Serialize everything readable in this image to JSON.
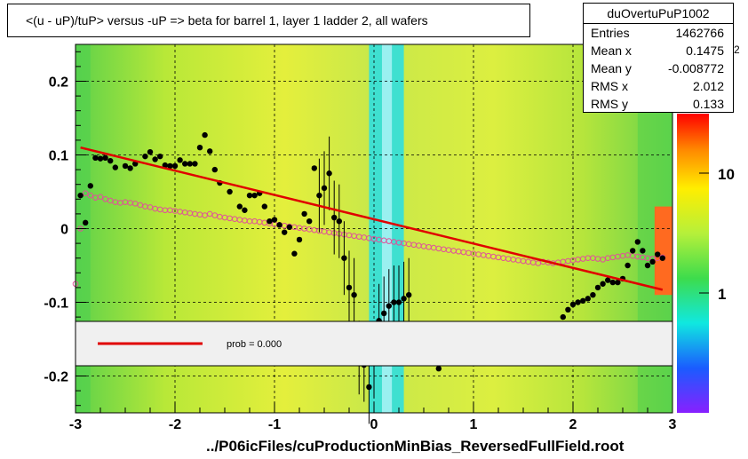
{
  "chart_data": {
    "type": "scatter",
    "title": "<(u - uP)/tuP>  versus  -uP => beta for barrel 1, layer 1 ladder 2, all wafers",
    "xlabel": "",
    "ylabel": "",
    "xlim": [
      -3,
      3
    ],
    "ylim": [
      -0.25,
      0.25
    ],
    "x_ticks": [
      "-3",
      "-2",
      "-1",
      "0",
      "1",
      "2",
      "3"
    ],
    "y_ticks": [
      "-0.2",
      "-0.1",
      "0",
      "0.1",
      "0.2"
    ],
    "grid": true,
    "colorbar_ticks": [
      "10",
      "1"
    ],
    "colorbar_exponent_label": "2",
    "histogram_name": "duOvertuPuP1002",
    "stats": [
      {
        "key": "Entries",
        "value": "1462766"
      },
      {
        "key": "Mean x",
        "value": "0.1475"
      },
      {
        "key": "Mean y",
        "value": "-0.008772"
      },
      {
        "key": "RMS x",
        "value": "2.012"
      },
      {
        "key": "RMS y",
        "value": "0.133"
      }
    ],
    "fit_legend": "prob = 0.000",
    "fit_line": {
      "x": [
        -2.95,
        2.9
      ],
      "y": [
        0.11,
        -0.083
      ]
    },
    "series": [
      {
        "marker": "filled-circle",
        "x": [
          -2.95,
          -2.9,
          -2.85,
          -2.8,
          -2.75,
          -2.7,
          -2.65,
          -2.6,
          -2.5,
          -2.45,
          -2.4,
          -2.3,
          -2.25,
          -2.2,
          -2.15,
          -2.1,
          -2.05,
          -2.0,
          -1.95,
          -1.9,
          -1.85,
          -1.8,
          -1.75,
          -1.7,
          -1.65,
          -1.6,
          -1.55,
          -1.45,
          -1.35,
          -1.3,
          -1.25,
          -1.2,
          -1.15,
          -1.1,
          -1.05,
          -1.0,
          -0.95,
          -0.9,
          -0.85,
          -0.8,
          -0.75,
          -0.7,
          -0.65,
          -0.6,
          -0.55,
          -0.5,
          -0.45,
          -0.4,
          -0.35,
          -0.3,
          -0.25,
          -0.2,
          -0.15,
          -0.1,
          -0.05,
          0.0,
          0.05,
          0.1,
          0.15,
          0.2,
          0.25,
          0.3,
          0.35,
          0.65,
          1.9,
          1.95,
          2.0,
          2.05,
          2.1,
          2.15,
          2.2,
          2.25,
          2.3,
          2.35,
          2.4,
          2.45,
          2.5,
          2.55,
          2.6,
          2.65,
          2.7,
          2.75,
          2.8,
          2.85,
          2.9
        ],
        "y": [
          0.045,
          0.008,
          0.058,
          0.096,
          0.095,
          0.096,
          0.092,
          0.083,
          0.085,
          0.082,
          0.088,
          0.098,
          0.104,
          0.094,
          0.098,
          0.086,
          0.085,
          0.085,
          0.093,
          0.088,
          0.088,
          0.088,
          0.11,
          0.127,
          0.105,
          0.08,
          0.062,
          0.05,
          0.03,
          0.025,
          0.045,
          0.045,
          0.048,
          0.03,
          0.01,
          0.012,
          0.005,
          -0.005,
          0.002,
          -0.034,
          -0.015,
          0.02,
          0.01,
          0.082,
          0.045,
          0.055,
          0.075,
          0.015,
          0.01,
          -0.04,
          -0.08,
          -0.09,
          -0.175,
          -0.185,
          -0.215,
          -0.18,
          -0.125,
          -0.115,
          -0.105,
          -0.1,
          -0.1,
          -0.095,
          -0.09,
          -0.19,
          -0.12,
          -0.11,
          -0.103,
          -0.1,
          -0.098,
          -0.095,
          -0.09,
          -0.08,
          -0.075,
          -0.07,
          -0.073,
          -0.073,
          -0.068,
          -0.05,
          -0.03,
          -0.018,
          -0.03,
          -0.05,
          -0.045,
          -0.035,
          -0.04
        ]
      },
      {
        "marker": "open-circle",
        "x": [
          -3.0,
          -2.95,
          -2.9,
          -2.85,
          -2.8,
          -2.75,
          -2.7,
          -2.65,
          -2.6,
          -2.55,
          -2.5,
          -2.45,
          -2.4,
          -2.35,
          -2.3,
          -2.25,
          -2.2,
          -2.15,
          -2.1,
          -2.05,
          -2.0,
          -1.95,
          -1.9,
          -1.85,
          -1.8,
          -1.75,
          -1.7,
          -1.65,
          -1.6,
          -1.55,
          -1.5,
          -1.45,
          -1.4,
          -1.35,
          -1.3,
          -1.25,
          -1.2,
          -1.15,
          -1.1,
          -1.05,
          -1.0,
          -0.95,
          -0.9,
          -0.85,
          -0.8,
          -0.75,
          -0.7,
          -0.65,
          -0.6,
          -0.55,
          -0.5,
          -0.45,
          -0.4,
          -0.35,
          -0.3,
          -0.25,
          -0.2,
          -0.15,
          -0.1,
          -0.05,
          0.0,
          0.05,
          0.1,
          0.15,
          0.2,
          0.25,
          0.3,
          0.35,
          0.4,
          0.45,
          0.5,
          0.55,
          0.6,
          0.65,
          0.7,
          0.75,
          0.8,
          0.85,
          0.9,
          0.95,
          1.0,
          1.05,
          1.1,
          1.15,
          1.2,
          1.25,
          1.3,
          1.35,
          1.4,
          1.45,
          1.5,
          1.55,
          1.6,
          1.65,
          1.7,
          1.75,
          1.8,
          1.85,
          1.9,
          1.95,
          2.0,
          2.05,
          2.1,
          2.15,
          2.2,
          2.25,
          2.3,
          2.35,
          2.4,
          2.45,
          2.5,
          2.55,
          2.6,
          2.65,
          2.7,
          2.75,
          2.8,
          2.85,
          2.9
        ],
        "y": [
          -0.075,
          0.0,
          0.048,
          0.045,
          0.042,
          0.043,
          0.04,
          0.038,
          0.036,
          0.035,
          0.036,
          0.035,
          0.034,
          0.032,
          0.03,
          0.029,
          0.027,
          0.026,
          0.025,
          0.025,
          0.024,
          0.023,
          0.022,
          0.021,
          0.02,
          0.019,
          0.018,
          0.02,
          0.018,
          0.016,
          0.015,
          0.014,
          0.013,
          0.012,
          0.011,
          0.01,
          0.01,
          0.009,
          0.008,
          0.007,
          0.006,
          0.005,
          0.004,
          0.003,
          0.002,
          0.001,
          0.0,
          -0.001,
          -0.002,
          -0.003,
          -0.004,
          -0.005,
          -0.006,
          -0.007,
          -0.008,
          -0.009,
          -0.01,
          -0.011,
          -0.012,
          -0.013,
          -0.014,
          -0.015,
          -0.016,
          -0.017,
          -0.018,
          -0.019,
          -0.02,
          -0.021,
          -0.022,
          -0.023,
          -0.024,
          -0.025,
          -0.026,
          -0.027,
          -0.028,
          -0.029,
          -0.03,
          -0.031,
          -0.032,
          -0.033,
          -0.034,
          -0.035,
          -0.036,
          -0.037,
          -0.038,
          -0.039,
          -0.04,
          -0.041,
          -0.042,
          -0.043,
          -0.044,
          -0.045,
          -0.046,
          -0.047,
          -0.045,
          -0.046,
          -0.047,
          -0.046,
          -0.045,
          -0.044,
          -0.043,
          -0.042,
          -0.041,
          -0.04,
          -0.04,
          -0.041,
          -0.042,
          -0.04,
          -0.039,
          -0.038,
          -0.037,
          -0.036,
          -0.037,
          -0.038,
          -0.039,
          -0.04,
          -0.041,
          -0.04,
          -0.039
        ]
      }
    ]
  },
  "file_label": "../P06icFiles/cuProductionMinBias_ReversedFullField.root"
}
